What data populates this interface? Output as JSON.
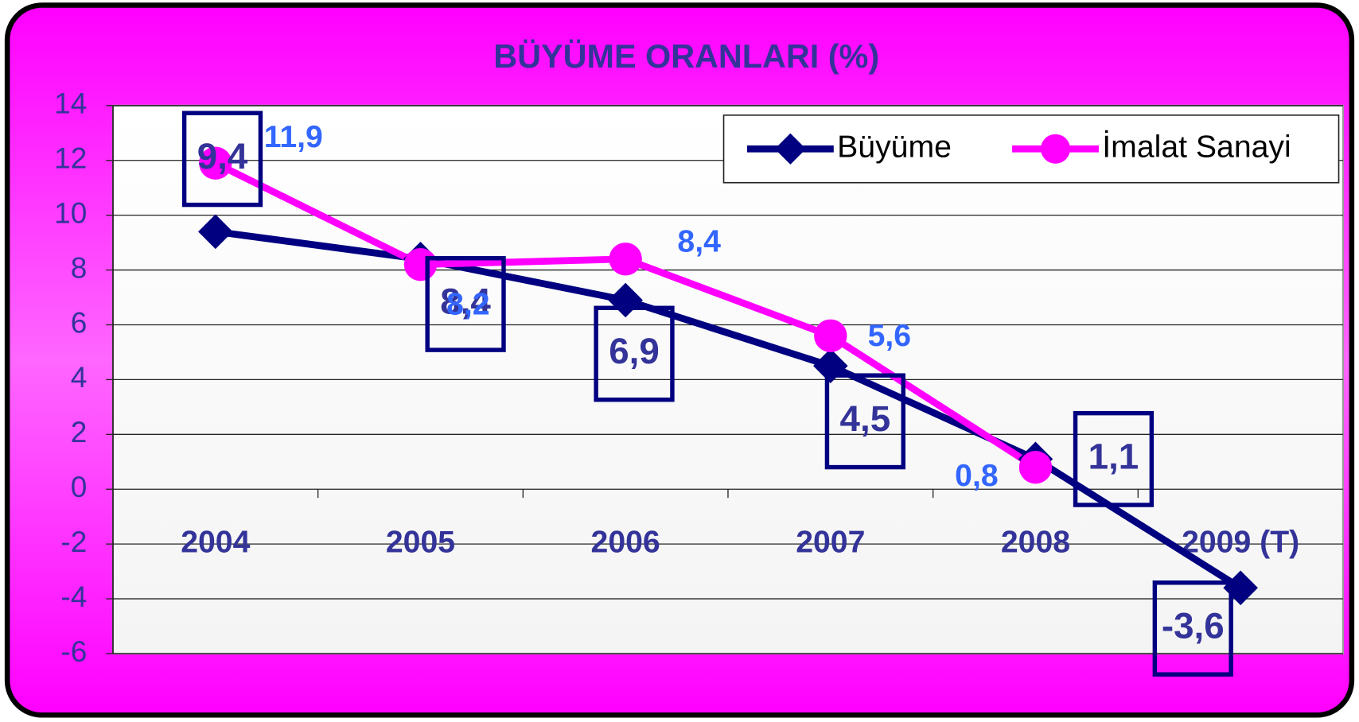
{
  "chart_data": {
    "type": "line",
    "title": "BÜYÜME ORANLARI (%)",
    "categories": [
      "2004",
      "2005",
      "2006",
      "2007",
      "2008",
      "2009 (T)"
    ],
    "series": [
      {
        "name": "Büyüme",
        "color": "#000080",
        "marker": "diamond",
        "label_color": "#333399",
        "label_boxed": true,
        "values": [
          9.4,
          8.4,
          6.9,
          4.5,
          1.1,
          -3.6
        ],
        "value_labels": [
          "9,4",
          "8,4",
          "6,9",
          "4,5",
          "1,1",
          "-3,6"
        ]
      },
      {
        "name": "İmalat Sanayi",
        "color": "#ff00ff",
        "marker": "circle",
        "label_color": "#3366ff",
        "label_boxed": false,
        "values": [
          11.9,
          8.2,
          8.4,
          5.6,
          0.8,
          null
        ],
        "value_labels": [
          "11,9",
          "8,2",
          "8,4",
          "5,6",
          "0,8",
          null
        ]
      }
    ],
    "ylim": [
      -6,
      14
    ],
    "yticks": [
      -6,
      -4,
      -2,
      0,
      2,
      4,
      6,
      8,
      10,
      12,
      14
    ],
    "grid": true,
    "legend": "top-right"
  }
}
